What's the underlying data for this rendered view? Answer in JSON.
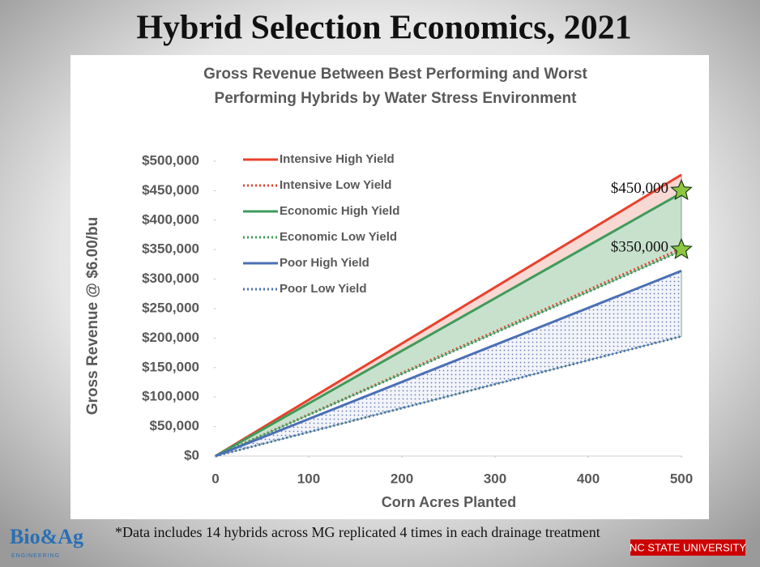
{
  "title": "Hybrid Selection Economics, 2021",
  "chart_data": {
    "type": "line",
    "subtitle": [
      "Gross Revenue Between Best Performing and Worst",
      "Performing Hybrids by Water Stress Environment"
    ],
    "x_label": "Corn Acres Planted",
    "y_label": "Gross Revenue @ $6.00/bu",
    "x": [
      0,
      500
    ],
    "series": [
      {
        "name": "Intensive High Yield",
        "color": "#e8412c",
        "style": "solid",
        "values": [
          0,
          477000
        ]
      },
      {
        "name": "Intensive Low Yield",
        "color": "#e8412c",
        "style": "dotted",
        "values": [
          0,
          352000
        ]
      },
      {
        "name": "Economic High Yield",
        "color": "#3f9b5a",
        "style": "solid",
        "values": [
          0,
          446000
        ]
      },
      {
        "name": "Economic Low Yield",
        "color": "#3f9b5a",
        "style": "dotted",
        "values": [
          0,
          348000
        ]
      },
      {
        "name": "Poor High Yield",
        "color": "#4a6fb5",
        "style": "solid",
        "values": [
          0,
          314000
        ]
      },
      {
        "name": "Poor Low Yield",
        "color": "#4a6fb5",
        "style": "dotted",
        "values": [
          0,
          203000
        ]
      }
    ],
    "xlim": [
      0,
      500
    ],
    "xticks": [
      0,
      100,
      200,
      300,
      400,
      500
    ],
    "ylim": [
      0,
      500000
    ],
    "yticks": [
      {
        "value": 0,
        "label": "$0"
      },
      {
        "value": 50000,
        "label": "$50,000"
      },
      {
        "value": 100000,
        "label": "$100,000"
      },
      {
        "value": 150000,
        "label": "$150,000"
      },
      {
        "value": 200000,
        "label": "$200,000"
      },
      {
        "value": 250000,
        "label": "$250,000"
      },
      {
        "value": 300000,
        "label": "$300,000"
      },
      {
        "value": 350000,
        "label": "$350,000"
      },
      {
        "value": 400000,
        "label": "$400,000"
      },
      {
        "value": 450000,
        "label": "$450,000"
      },
      {
        "value": 500000,
        "label": "$500,000"
      }
    ],
    "annotations": [
      {
        "text": "$450,000",
        "x": 500,
        "y": 450000
      },
      {
        "text": "$350,000",
        "x": 500,
        "y": 350000
      }
    ],
    "marker_color": "#8dc63f"
  },
  "footnote": "*Data includes 14 hybrids across MG replicated 4 times in each drainage treatment",
  "logos": {
    "bioag": "Bio&Ag",
    "engineering": "ENGINEERING",
    "ncstate": "NC STATE UNIVERSITY"
  }
}
